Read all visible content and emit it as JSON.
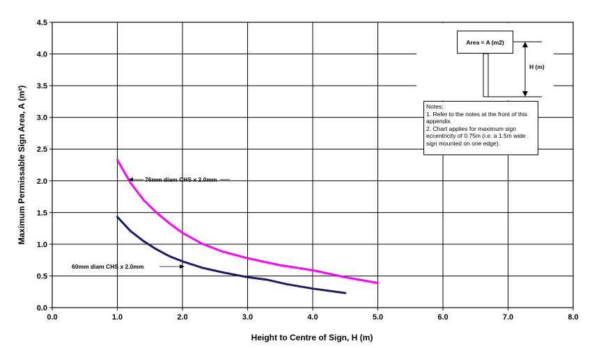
{
  "chart_data": {
    "type": "line",
    "xlabel": "Height to Centre of Sign, H (m)",
    "ylabel": "Maximum Permissable Sign Area, A (m²)",
    "xlim": [
      0,
      8
    ],
    "ylim": [
      0,
      4.5
    ],
    "x_ticks": [
      "0.0",
      "1.0",
      "2.0",
      "3.0",
      "4.0",
      "5.0",
      "6.0",
      "7.0",
      "8.0"
    ],
    "y_ticks": [
      "0.0",
      "0.5",
      "1.0",
      "1.5",
      "2.0",
      "2.5",
      "3.0",
      "3.5",
      "4.0",
      "4.5"
    ],
    "grid": true,
    "series": [
      {
        "name": "76mm diam CHS x 2.0mm",
        "color": "#ff00ff",
        "x": [
          1.0,
          1.2,
          1.4,
          1.6,
          1.8,
          2.0,
          2.3,
          2.6,
          3.0,
          3.5,
          4.0,
          4.1,
          4.5,
          5.0
        ],
        "y": [
          2.33,
          1.97,
          1.7,
          1.5,
          1.33,
          1.18,
          1.01,
          0.89,
          0.78,
          0.67,
          0.59,
          0.57,
          0.48,
          0.39
        ]
      },
      {
        "name": "60mm diam CHS x 2.0mm",
        "color": "#1a1a6e",
        "x": [
          1.0,
          1.2,
          1.4,
          1.6,
          1.8,
          2.0,
          2.3,
          2.6,
          3.0,
          3.3,
          3.6,
          4.0,
          4.5
        ],
        "y": [
          1.43,
          1.21,
          1.05,
          0.92,
          0.81,
          0.73,
          0.63,
          0.56,
          0.48,
          0.44,
          0.37,
          0.3,
          0.23
        ]
      }
    ],
    "annotations": [
      {
        "text": "76mm diam CHS x 2.0mm",
        "series": 0
      },
      {
        "text": "60mm diam CHS x 2.0mm",
        "series": 1
      }
    ]
  },
  "diagram": {
    "area_label": "Area = A (m2)",
    "height_label": "H (m)"
  },
  "notes": {
    "lines": [
      "Notes:",
      "1. Refer to the notes at the front of this appendix.",
      "2. Chart applies for maximum sign eccentricity of 0.75m (i.e. a 1.5m wide sign mounted on one edge)."
    ]
  }
}
